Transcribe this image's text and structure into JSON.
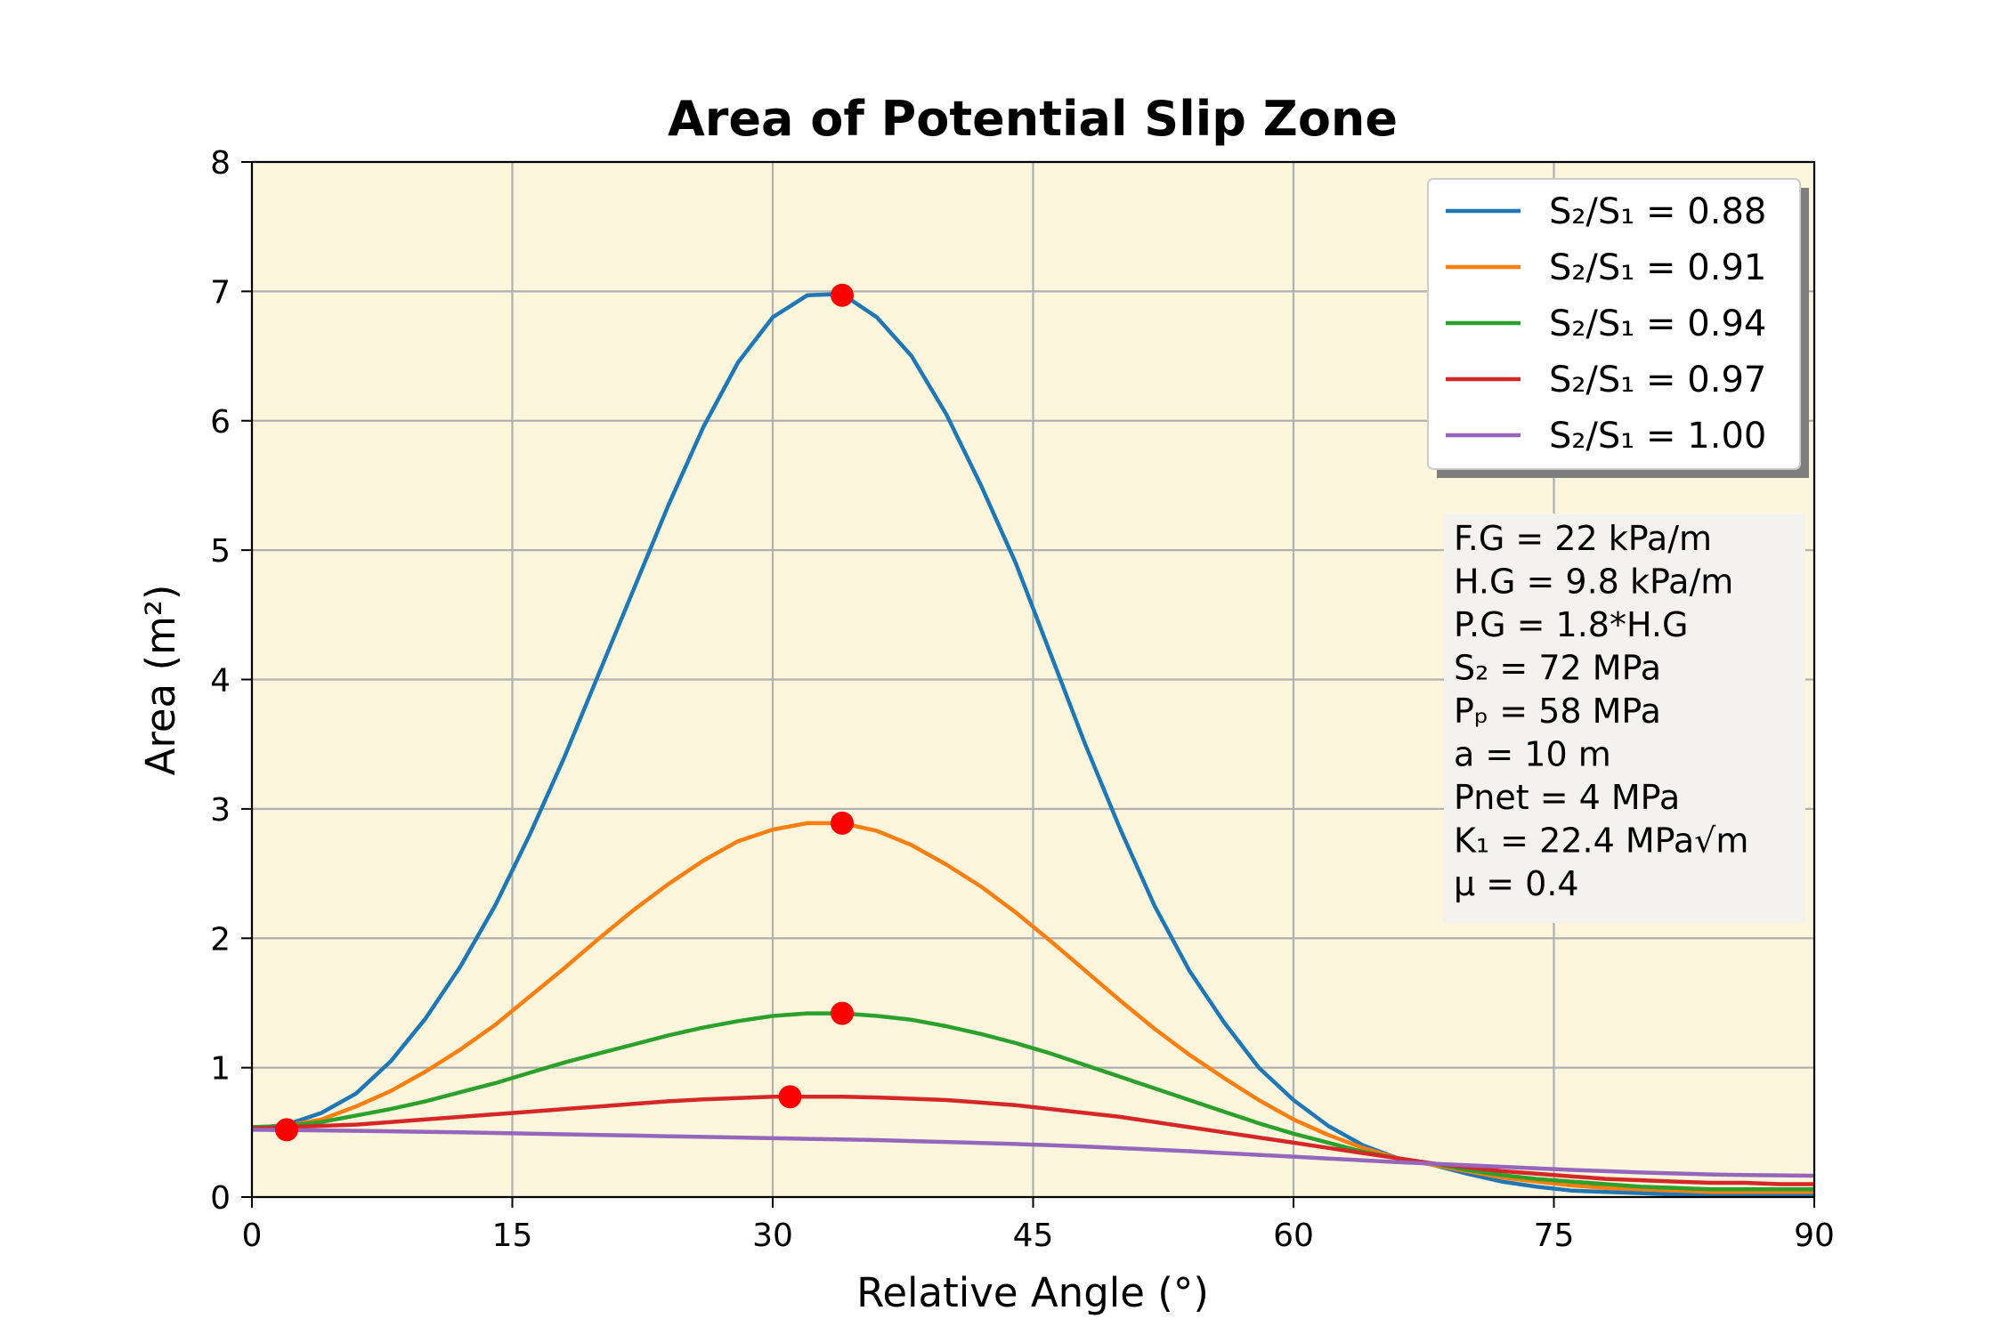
{
  "chart_data": {
    "type": "line",
    "title": "Area of Potential Slip Zone",
    "xlabel": "Relative Angle (°)",
    "ylabel": "Area (m²)",
    "xlim": [
      0,
      90
    ],
    "ylim": [
      0,
      8
    ],
    "xticks": [
      0,
      15,
      30,
      45,
      60,
      75,
      90
    ],
    "yticks": [
      0,
      1,
      2,
      3,
      4,
      5,
      6,
      7,
      8
    ],
    "grid": true,
    "background_color": "#fdf6dc",
    "legend_position": "top-right",
    "series": [
      {
        "name": "S₂/S₁ = 0.88",
        "color": "#1f77b4",
        "x": [
          0,
          2,
          4,
          6,
          8,
          10,
          12,
          14,
          16,
          18,
          20,
          22,
          24,
          26,
          28,
          30,
          32,
          34,
          36,
          38,
          40,
          42,
          44,
          46,
          48,
          50,
          52,
          54,
          56,
          58,
          60,
          62,
          64,
          66,
          68,
          70,
          72,
          74,
          76,
          78,
          80,
          82,
          84,
          86,
          88,
          90
        ],
        "y": [
          0.53,
          0.56,
          0.65,
          0.8,
          1.05,
          1.38,
          1.78,
          2.25,
          2.8,
          3.4,
          4.05,
          4.7,
          5.35,
          5.95,
          6.45,
          6.8,
          6.97,
          6.98,
          6.8,
          6.5,
          6.05,
          5.5,
          4.9,
          4.2,
          3.5,
          2.85,
          2.25,
          1.75,
          1.35,
          1.0,
          0.75,
          0.55,
          0.4,
          0.3,
          0.25,
          0.18,
          0.12,
          0.08,
          0.05,
          0.04,
          0.03,
          0.02,
          0.02,
          0.02,
          0.02,
          0.02
        ]
      },
      {
        "name": "S₂/S₁ = 0.91",
        "color": "#ff7f0e",
        "x": [
          0,
          2,
          4,
          6,
          8,
          10,
          12,
          14,
          16,
          18,
          20,
          22,
          24,
          26,
          28,
          30,
          32,
          34,
          36,
          38,
          40,
          42,
          44,
          46,
          48,
          50,
          52,
          54,
          56,
          58,
          60,
          62,
          64,
          66,
          68,
          70,
          72,
          74,
          76,
          78,
          80,
          82,
          84,
          86,
          88,
          90
        ],
        "y": [
          0.54,
          0.55,
          0.6,
          0.7,
          0.82,
          0.97,
          1.14,
          1.33,
          1.55,
          1.77,
          2.0,
          2.22,
          2.42,
          2.6,
          2.75,
          2.84,
          2.89,
          2.89,
          2.83,
          2.72,
          2.57,
          2.4,
          2.2,
          1.98,
          1.75,
          1.52,
          1.3,
          1.1,
          0.92,
          0.75,
          0.6,
          0.48,
          0.38,
          0.3,
          0.25,
          0.2,
          0.15,
          0.12,
          0.09,
          0.07,
          0.06,
          0.05,
          0.04,
          0.04,
          0.04,
          0.04
        ]
      },
      {
        "name": "S₂/S₁ = 0.94",
        "color": "#2ca02c",
        "x": [
          0,
          2,
          4,
          6,
          8,
          10,
          12,
          14,
          16,
          18,
          20,
          22,
          24,
          26,
          28,
          30,
          32,
          34,
          36,
          38,
          40,
          42,
          44,
          46,
          48,
          50,
          52,
          54,
          56,
          58,
          60,
          62,
          64,
          66,
          68,
          70,
          72,
          74,
          76,
          78,
          80,
          82,
          84,
          86,
          88,
          90
        ],
        "y": [
          0.54,
          0.55,
          0.58,
          0.63,
          0.68,
          0.74,
          0.81,
          0.88,
          0.96,
          1.04,
          1.11,
          1.18,
          1.25,
          1.31,
          1.36,
          1.4,
          1.42,
          1.42,
          1.4,
          1.37,
          1.32,
          1.26,
          1.19,
          1.11,
          1.02,
          0.93,
          0.84,
          0.75,
          0.66,
          0.57,
          0.49,
          0.42,
          0.35,
          0.3,
          0.26,
          0.21,
          0.17,
          0.14,
          0.12,
          0.1,
          0.08,
          0.07,
          0.06,
          0.06,
          0.06,
          0.06
        ]
      },
      {
        "name": "S₂/S₁ = 0.97",
        "color": "#d62728",
        "x": [
          0,
          2,
          4,
          6,
          8,
          10,
          12,
          14,
          16,
          18,
          20,
          22,
          24,
          26,
          28,
          30,
          32,
          34,
          36,
          38,
          40,
          42,
          44,
          46,
          48,
          50,
          52,
          54,
          56,
          58,
          60,
          62,
          64,
          66,
          68,
          70,
          72,
          74,
          76,
          78,
          80,
          82,
          84,
          86,
          88,
          90
        ],
        "y": [
          0.53,
          0.54,
          0.55,
          0.56,
          0.58,
          0.6,
          0.62,
          0.64,
          0.66,
          0.68,
          0.7,
          0.72,
          0.74,
          0.755,
          0.765,
          0.775,
          0.775,
          0.775,
          0.77,
          0.76,
          0.75,
          0.73,
          0.71,
          0.68,
          0.65,
          0.62,
          0.58,
          0.54,
          0.5,
          0.46,
          0.42,
          0.38,
          0.34,
          0.3,
          0.26,
          0.23,
          0.2,
          0.18,
          0.16,
          0.14,
          0.13,
          0.12,
          0.11,
          0.11,
          0.1,
          0.1
        ]
      },
      {
        "name": "S₂/S₁ = 1.00",
        "color": "#9467bd",
        "x": [
          0,
          2,
          4,
          6,
          8,
          10,
          12,
          14,
          16,
          18,
          20,
          22,
          24,
          26,
          28,
          30,
          32,
          34,
          36,
          38,
          40,
          42,
          44,
          46,
          48,
          50,
          52,
          54,
          56,
          58,
          60,
          62,
          64,
          66,
          68,
          70,
          72,
          74,
          76,
          78,
          80,
          82,
          84,
          86,
          88,
          90
        ],
        "y": [
          0.52,
          0.518,
          0.515,
          0.512,
          0.508,
          0.504,
          0.5,
          0.495,
          0.49,
          0.485,
          0.48,
          0.475,
          0.47,
          0.465,
          0.46,
          0.455,
          0.45,
          0.445,
          0.44,
          0.433,
          0.426,
          0.418,
          0.41,
          0.4,
          0.39,
          0.378,
          0.366,
          0.354,
          0.34,
          0.326,
          0.312,
          0.298,
          0.284,
          0.27,
          0.258,
          0.246,
          0.234,
          0.222,
          0.21,
          0.2,
          0.19,
          0.182,
          0.175,
          0.17,
          0.168,
          0.165
        ]
      }
    ],
    "markers": {
      "color": "#ff0000",
      "points": [
        {
          "x": 2,
          "y": 0.52
        },
        {
          "x": 34,
          "y": 6.97
        },
        {
          "x": 34,
          "y": 2.89
        },
        {
          "x": 34,
          "y": 1.42
        },
        {
          "x": 31,
          "y": 0.775
        }
      ]
    },
    "annotation_lines": [
      "F.G = 22 kPa/m",
      "H.G = 9.8 kPa/m",
      "P.G  = 1.8*H.G",
      "S₂ = 72 MPa",
      "Pₚ = 58 MPa",
      "a = 10 m",
      "Pnet = 4 MPa",
      "K₁ = 22.4 MPa√m",
      "μ = 0.4"
    ]
  }
}
